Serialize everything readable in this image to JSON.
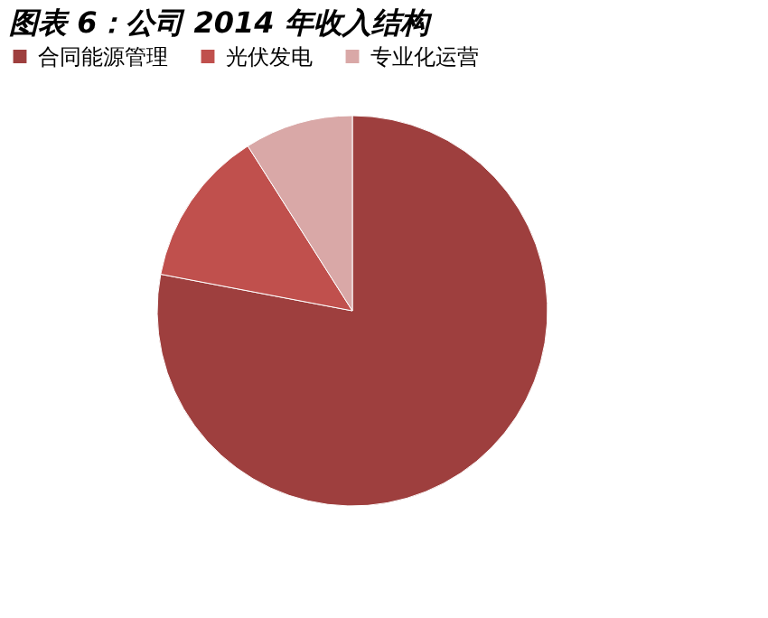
{
  "chart_data": {
    "type": "pie",
    "title": "图表 6：公司 2014 年收入结构",
    "categories": [
      "合同能源管理",
      "光伏发电",
      "专业化运营"
    ],
    "values": [
      78,
      13,
      9
    ],
    "colors": [
      "#9e3f3e",
      "#c0504d",
      "#d9a8a7"
    ],
    "legend": "top"
  }
}
